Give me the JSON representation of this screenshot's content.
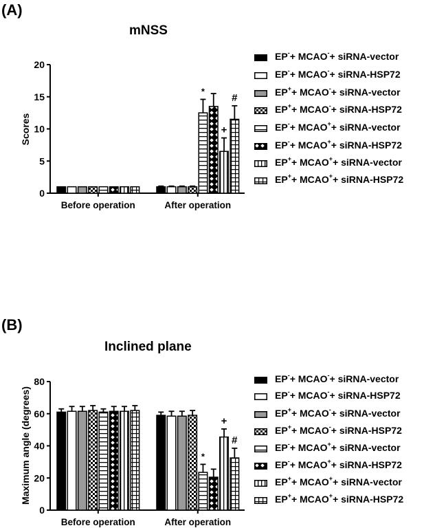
{
  "panels": [
    {
      "label": "(A)",
      "title": "mNSS"
    },
    {
      "label": "(B)",
      "title": "Inclined plane"
    }
  ],
  "legend": [
    {
      "ep": "-",
      "mcao": "-",
      "sirna": "siRNA-vector",
      "pattern": "solid-black"
    },
    {
      "ep": "-",
      "mcao": "-",
      "sirna": "siRNA-HSP72",
      "pattern": "white"
    },
    {
      "ep": "+",
      "mcao": "-",
      "sirna": "siRNA-vector",
      "pattern": "solid-gray"
    },
    {
      "ep": "+",
      "mcao": "-",
      "sirna": "siRNA-HSP72",
      "pattern": "checker"
    },
    {
      "ep": "-",
      "mcao": "+",
      "sirna": "siRNA-vector",
      "pattern": "horizontal-stripes"
    },
    {
      "ep": "-",
      "mcao": "+",
      "sirna": "siRNA-HSP72",
      "pattern": "diamond-crosshatch"
    },
    {
      "ep": "+",
      "mcao": "+",
      "sirna": "siRNA-vector",
      "pattern": "vertical-stripes"
    },
    {
      "ep": "+",
      "mcao": "+",
      "sirna": "siRNA-HSP72",
      "pattern": "grid"
    }
  ],
  "chart_data": [
    {
      "type": "bar",
      "title": "mNSS",
      "panel": "(A)",
      "xlabel": "",
      "ylabel": "Scores",
      "ylim": [
        0,
        20
      ],
      "yticks": [
        0,
        5,
        10,
        15,
        20
      ],
      "categories": [
        "Before operation",
        "After operation"
      ],
      "series": [
        {
          "name": "EP- + MCAO- + siRNA-vector",
          "values": [
            1,
            1
          ],
          "errors": [
            0,
            0.1
          ]
        },
        {
          "name": "EP- + MCAO- + siRNA-HSP72",
          "values": [
            1,
            1
          ],
          "errors": [
            0,
            0.1
          ]
        },
        {
          "name": "EP+ + MCAO- + siRNA-vector",
          "values": [
            1,
            1
          ],
          "errors": [
            0,
            0.1
          ]
        },
        {
          "name": "EP+ + MCAO- + siRNA-HSP72",
          "values": [
            1,
            1
          ],
          "errors": [
            0,
            0.1
          ]
        },
        {
          "name": "EP- + MCAO+ + siRNA-vector",
          "values": [
            1,
            12.5
          ],
          "errors": [
            0,
            2.1
          ],
          "annotations": [
            "",
            "*"
          ]
        },
        {
          "name": "EP- + MCAO+ + siRNA-HSP72",
          "values": [
            1,
            13.5
          ],
          "errors": [
            0,
            2.0
          ],
          "annotations": [
            "",
            ""
          ]
        },
        {
          "name": "EP+ + MCAO+ + siRNA-vector",
          "values": [
            1,
            6.5
          ],
          "errors": [
            0,
            2.1
          ],
          "annotations": [
            "",
            "+"
          ]
        },
        {
          "name": "EP+ + MCAO+ + siRNA-HSP72",
          "values": [
            1,
            11.5
          ],
          "errors": [
            0,
            2.1
          ],
          "annotations": [
            "",
            "#"
          ]
        }
      ],
      "legend_position": "right",
      "grid": false
    },
    {
      "type": "bar",
      "title": "Inclined plane",
      "panel": "(B)",
      "xlabel": "",
      "ylabel": "Maximum angle (degrees)",
      "ylim": [
        0,
        80
      ],
      "yticks": [
        0,
        20,
        40,
        60,
        80
      ],
      "categories": [
        "Before operation",
        "After operation"
      ],
      "series": [
        {
          "name": "EP- + MCAO- + siRNA-vector",
          "values": [
            61,
            59
          ],
          "errors": [
            2,
            2
          ]
        },
        {
          "name": "EP- + MCAO- + siRNA-HSP72",
          "values": [
            61.5,
            58.5
          ],
          "errors": [
            3,
            3
          ]
        },
        {
          "name": "EP+ + MCAO- + siRNA-vector",
          "values": [
            61.5,
            58.5
          ],
          "errors": [
            3,
            3
          ]
        },
        {
          "name": "EP+ + MCAO- + siRNA-HSP72",
          "values": [
            62,
            59
          ],
          "errors": [
            3,
            3
          ]
        },
        {
          "name": "EP- + MCAO+ + siRNA-vector",
          "values": [
            61,
            23.5
          ],
          "errors": [
            2,
            5
          ],
          "annotations": [
            "",
            "*"
          ]
        },
        {
          "name": "EP- + MCAO+ + siRNA-HSP72",
          "values": [
            61.5,
            20.5
          ],
          "errors": [
            3,
            5
          ],
          "annotations": [
            "",
            ""
          ]
        },
        {
          "name": "EP+ + MCAO+ + siRNA-vector",
          "values": [
            61.5,
            45.5
          ],
          "errors": [
            3,
            5
          ],
          "annotations": [
            "",
            "+"
          ]
        },
        {
          "name": "EP+ + MCAO+ + siRNA-HSP72",
          "values": [
            62,
            32.5
          ],
          "errors": [
            3,
            6
          ],
          "annotations": [
            "",
            "#"
          ]
        }
      ],
      "legend_position": "right",
      "grid": false
    }
  ]
}
